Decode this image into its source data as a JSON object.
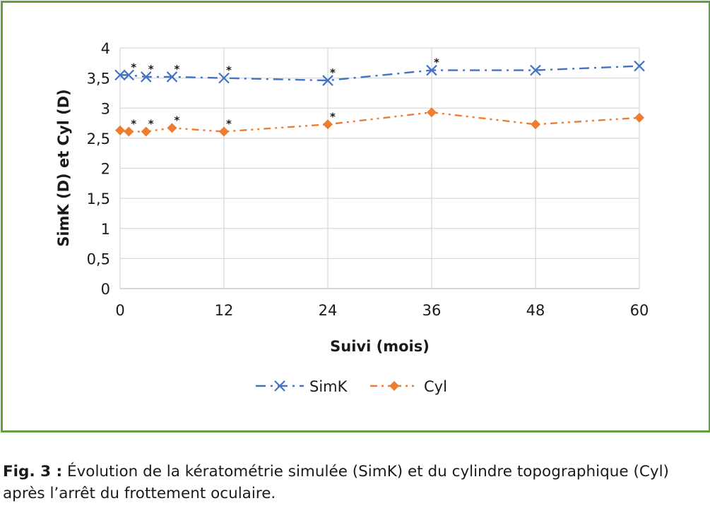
{
  "chart_data": {
    "type": "line",
    "x": [
      0,
      1,
      3,
      6,
      12,
      24,
      36,
      48,
      60
    ],
    "xlabel": "Suivi (mois)",
    "ylabel": "SimK (D) et Cyl (D)",
    "xlim": [
      0,
      60
    ],
    "ylim": [
      0,
      4
    ],
    "xticks": [
      "0",
      "12",
      "24",
      "36",
      "48",
      "60"
    ],
    "yticks": [
      "0",
      "0,5",
      "1",
      "1,5",
      "2",
      "2,5",
      "3",
      "3,5",
      "4"
    ],
    "grid": true,
    "legend_position": "bottom",
    "series": [
      {
        "name": "SimK",
        "color": "#4472c4",
        "marker": "x",
        "line_style": "dash-dot",
        "values": [
          3.55,
          3.55,
          3.52,
          3.52,
          3.5,
          3.46,
          3.63,
          3.63,
          3.7
        ],
        "significant": [
          false,
          true,
          true,
          true,
          true,
          true,
          true,
          false,
          false
        ]
      },
      {
        "name": "Cyl",
        "color": "#ed7d31",
        "marker": "diamond",
        "line_style": "dash-dot-dot",
        "values": [
          2.63,
          2.61,
          2.61,
          2.67,
          2.61,
          2.73,
          2.93,
          2.73,
          2.84
        ],
        "significant": [
          false,
          true,
          true,
          true,
          true,
          true,
          false,
          false,
          false
        ]
      }
    ],
    "annotation_symbol": "*"
  },
  "caption": {
    "label": "Fig. 3 :",
    "text": " Évolution de la kératométrie simulée (SimK) et du cylindre topographique (Cyl) après l’arrêt du frottement oculaire."
  }
}
